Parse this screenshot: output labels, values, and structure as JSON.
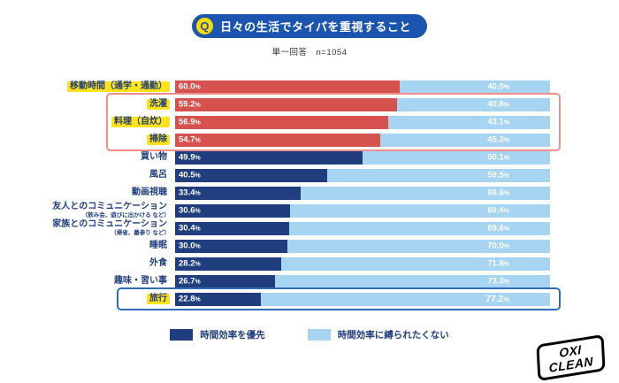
{
  "header": {
    "q_mark": "Q",
    "title": "日々の生活でタイパを重視すること",
    "subtitle": "単一回答　n=1054"
  },
  "chart_data": {
    "type": "bar",
    "orientation": "horizontal",
    "stacked": true,
    "unit": "%",
    "xlim": [
      0,
      100
    ],
    "series_names": [
      "時間効率を優先",
      "時間効率に縛られたくない"
    ],
    "colors": {
      "left_navy": "#203e7d",
      "left_red": "#d6524e",
      "right_light_blue": "#a7d4f0",
      "label_navy": "#203e7d",
      "highlight_yellow": "#ffe21a",
      "red_box_border": "#f28d8d",
      "blue_box_border": "#2f6cb7"
    },
    "rows": [
      {
        "label": "移動時間（通学・通勤）",
        "sublabel": "",
        "left": 60.0,
        "right": 40.0,
        "left_color": "red",
        "label_highlight": true,
        "right_emph": false
      },
      {
        "label": "洗濯",
        "sublabel": "",
        "left": 59.2,
        "right": 40.8,
        "left_color": "red",
        "label_highlight": true,
        "right_emph": false
      },
      {
        "label": "料理（自炊）",
        "sublabel": "",
        "left": 56.9,
        "right": 43.1,
        "left_color": "red",
        "label_highlight": true,
        "right_emph": false
      },
      {
        "label": "掃除",
        "sublabel": "",
        "left": 54.7,
        "right": 45.3,
        "left_color": "red",
        "label_highlight": true,
        "right_emph": false
      },
      {
        "label": "買い物",
        "sublabel": "",
        "left": 49.9,
        "right": 50.1,
        "left_color": "navy",
        "label_highlight": false,
        "right_emph": false
      },
      {
        "label": "風呂",
        "sublabel": "",
        "left": 40.5,
        "right": 59.5,
        "left_color": "navy",
        "label_highlight": false,
        "right_emph": false
      },
      {
        "label": "動画視聴",
        "sublabel": "",
        "left": 33.4,
        "right": 66.6,
        "left_color": "navy",
        "label_highlight": false,
        "right_emph": false
      },
      {
        "label": "友人とのコミュニケーション",
        "sublabel": "（飲み会、遊びに出かける など）",
        "left": 30.6,
        "right": 69.4,
        "left_color": "navy",
        "label_highlight": false,
        "right_emph": false
      },
      {
        "label": "家族とのコミュニケーション",
        "sublabel": "（帰省、墓参り など）",
        "left": 30.4,
        "right": 69.6,
        "left_color": "navy",
        "label_highlight": false,
        "right_emph": false
      },
      {
        "label": "睡眠",
        "sublabel": "",
        "left": 30.0,
        "right": 70.0,
        "left_color": "navy",
        "label_highlight": false,
        "right_emph": false
      },
      {
        "label": "外食",
        "sublabel": "",
        "left": 28.2,
        "right": 71.8,
        "left_color": "navy",
        "label_highlight": false,
        "right_emph": false
      },
      {
        "label": "趣味・習い事",
        "sublabel": "",
        "left": 26.7,
        "right": 73.3,
        "left_color": "navy",
        "label_highlight": false,
        "right_emph": false
      },
      {
        "label": "旅行",
        "sublabel": "",
        "left": 22.8,
        "right": 77.2,
        "left_color": "navy",
        "label_highlight": true,
        "right_emph": true
      }
    ],
    "highlight_boxes": [
      {
        "color": "#f28d8d",
        "rows": [
          "洗濯",
          "料理（自炊）",
          "掃除"
        ]
      },
      {
        "color": "#2f6cb7",
        "rows": [
          "旅行"
        ]
      }
    ]
  },
  "legend": {
    "items": [
      {
        "label": "時間効率を優先",
        "color": "#203e7d"
      },
      {
        "label": "時間効率に縛られたくない",
        "color": "#a7d4f0"
      }
    ]
  },
  "logo": {
    "line1": "OXI",
    "line2": "CLEAN"
  }
}
